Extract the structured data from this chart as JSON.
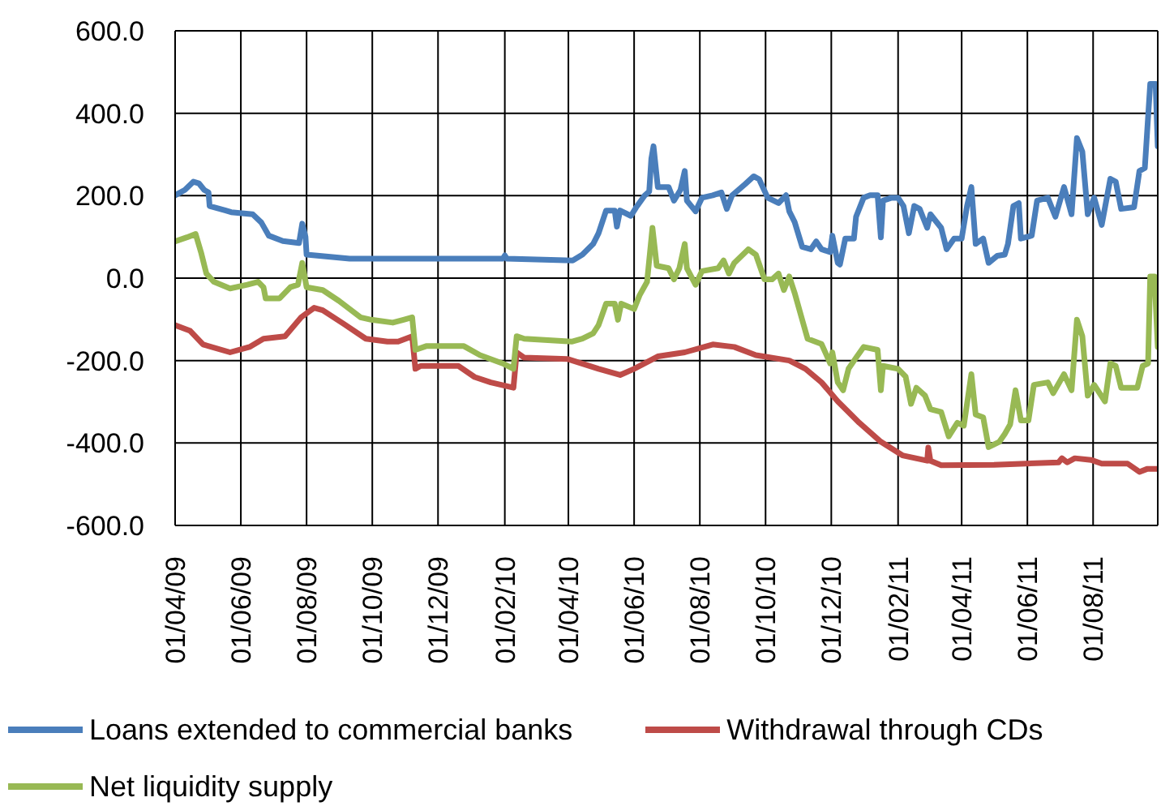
{
  "chart_data": {
    "type": "line",
    "xlim": [
      "2009-04-01",
      "2011-09-30"
    ],
    "xticks": [
      {
        "value": "2009-04-01",
        "label": "01/04/09"
      },
      {
        "value": "2009-06-01",
        "label": "01/06/09"
      },
      {
        "value": "2009-08-01",
        "label": "01/08/09"
      },
      {
        "value": "2009-10-01",
        "label": "01/10/09"
      },
      {
        "value": "2009-12-01",
        "label": "01/12/09"
      },
      {
        "value": "2010-02-01",
        "label": "01/02/10"
      },
      {
        "value": "2010-04-01",
        "label": "01/04/10"
      },
      {
        "value": "2010-06-01",
        "label": "01/06/10"
      },
      {
        "value": "2010-08-01",
        "label": "01/08/10"
      },
      {
        "value": "2010-10-01",
        "label": "01/10/10"
      },
      {
        "value": "2010-12-01",
        "label": "01/12/10"
      },
      {
        "value": "2011-02-01",
        "label": "01/02/11"
      },
      {
        "value": "2011-04-01",
        "label": "01/04/11"
      },
      {
        "value": "2011-06-01",
        "label": "01/06/11"
      },
      {
        "value": "2011-08-01",
        "label": "01/08/11"
      }
    ],
    "ylim": [
      -600,
      600
    ],
    "yticks": [
      {
        "value": -600,
        "label": "-600.0"
      },
      {
        "value": -400,
        "label": "-400.0"
      },
      {
        "value": -200,
        "label": "-200.0"
      },
      {
        "value": 0,
        "label": "0.0"
      },
      {
        "value": 200,
        "label": "200.0"
      },
      {
        "value": 400,
        "label": "400.0"
      },
      {
        "value": 600,
        "label": "600.0"
      }
    ],
    "grid": true,
    "legend": "bottom",
    "series": [
      {
        "name": "Loans extended to commercial banks",
        "color": "#4a7ebb",
        "x": [
          "2009-04-01",
          "2009-04-10",
          "2009-04-18",
          "2009-04-23",
          "2009-04-28",
          "2009-05-02",
          "2009-05-03",
          "2009-05-18",
          "2009-05-23",
          "2009-06-12",
          "2009-06-20",
          "2009-06-27",
          "2009-07-10",
          "2009-07-25",
          "2009-07-28",
          "2009-07-31",
          "2009-08-01",
          "2009-09-10",
          "2010-01-30",
          "2010-02-01",
          "2010-02-03",
          "2010-04-05",
          "2010-04-14",
          "2010-04-24",
          "2010-04-29",
          "2010-05-06",
          "2010-05-14",
          "2010-05-16",
          "2010-05-19",
          "2010-05-29",
          "2010-06-03",
          "2010-06-11",
          "2010-06-15",
          "2010-06-17",
          "2010-06-19",
          "2010-06-23",
          "2010-07-03",
          "2010-07-08",
          "2010-07-14",
          "2010-07-18",
          "2010-07-20",
          "2010-07-28",
          "2010-08-03",
          "2010-08-13",
          "2010-08-21",
          "2010-08-26",
          "2010-08-31",
          "2010-09-12",
          "2010-09-20",
          "2010-09-25",
          "2010-10-03",
          "2010-10-13",
          "2010-10-20",
          "2010-10-23",
          "2010-10-28",
          "2010-11-04",
          "2010-11-12",
          "2010-11-17",
          "2010-11-22",
          "2010-11-30",
          "2010-12-02",
          "2010-12-07",
          "2010-12-09",
          "2010-12-14",
          "2010-12-22",
          "2010-12-24",
          "2010-12-31",
          "2011-01-06",
          "2011-01-13",
          "2011-01-16",
          "2011-01-18",
          "2011-01-26",
          "2011-02-01",
          "2011-02-06",
          "2011-02-11",
          "2011-02-16",
          "2011-02-21",
          "2011-02-28",
          "2011-03-03",
          "2011-03-13",
          "2011-03-18",
          "2011-03-25",
          "2011-04-01",
          "2011-04-06",
          "2011-04-10",
          "2011-04-14",
          "2011-04-21",
          "2011-04-26",
          "2011-05-04",
          "2011-05-11",
          "2011-05-14",
          "2011-05-19",
          "2011-05-24",
          "2011-05-26",
          "2011-06-05",
          "2011-06-10",
          "2011-06-20",
          "2011-06-27",
          "2011-07-05",
          "2011-07-12",
          "2011-07-17",
          "2011-07-22",
          "2011-07-27",
          "2011-08-02",
          "2011-08-09",
          "2011-08-17",
          "2011-08-22",
          "2011-08-27",
          "2011-09-08",
          "2011-09-13",
          "2011-09-18",
          "2011-09-23",
          "2011-09-28",
          "2011-09-30"
        ],
        "values": [
          201,
          214,
          234,
          230,
          214,
          208,
          175,
          164,
          160,
          155,
          135,
          103,
          90,
          85,
          132,
          100,
          57,
          47,
          47,
          55,
          47,
          43,
          57,
          83,
          109,
          164,
          164,
          125,
          164,
          151,
          172,
          201,
          210,
          290,
          320,
          221,
          221,
          188,
          214,
          260,
          188,
          162,
          195,
          201,
          208,
          168,
          201,
          228,
          247,
          240,
          195,
          182,
          201,
          162,
          136,
          76,
          70,
          89,
          70,
          63,
          103,
          37,
          33,
          96,
          96,
          149,
          195,
          201,
          201,
          99,
          188,
          195,
          195,
          175,
          109,
          175,
          168,
          122,
          155,
          122,
          70,
          96,
          96,
          175,
          221,
          83,
          96,
          37,
          54,
          57,
          83,
          175,
          182,
          96,
          103,
          188,
          195,
          149,
          221,
          155,
          340,
          307,
          155,
          195,
          129,
          241,
          234,
          168,
          172,
          260,
          267,
          471,
          471,
          320
        ]
      },
      {
        "name": "Withdrawal through CDs",
        "color": "#be4b48",
        "x": [
          "2009-04-01",
          "2009-04-15",
          "2009-04-27",
          "2009-05-22",
          "2009-06-09",
          "2009-06-22",
          "2009-07-12",
          "2009-07-27",
          "2009-08-08",
          "2009-08-16",
          "2009-09-05",
          "2009-09-25",
          "2009-10-15",
          "2009-10-25",
          "2009-11-07",
          "2009-11-10",
          "2009-11-15",
          "2009-12-20",
          "2010-01-04",
          "2010-01-19",
          "2010-02-09",
          "2010-02-12",
          "2010-02-19",
          "2010-03-31",
          "2010-04-29",
          "2010-05-19",
          "2010-06-01",
          "2010-06-23",
          "2010-07-18",
          "2010-08-13",
          "2010-09-02",
          "2010-09-22",
          "2010-10-23",
          "2010-11-07",
          "2010-11-22",
          "2010-12-07",
          "2010-12-27",
          "2011-01-16",
          "2011-02-05",
          "2011-02-28",
          "2011-03-01",
          "2011-03-03",
          "2011-03-13",
          "2011-05-01",
          "2011-06-30",
          "2011-07-03",
          "2011-07-08",
          "2011-07-15",
          "2011-07-30",
          "2011-08-09",
          "2011-09-02",
          "2011-09-13",
          "2011-09-20",
          "2011-09-30"
        ],
        "values": [
          -114,
          -128,
          -161,
          -180,
          -167,
          -147,
          -141,
          -95,
          -72,
          -78,
          -112,
          -147,
          -154,
          -154,
          -141,
          -220,
          -213,
          -213,
          -240,
          -253,
          -266,
          -180,
          -193,
          -196,
          -220,
          -235,
          -220,
          -190,
          -180,
          -161,
          -167,
          -187,
          -200,
          -220,
          -253,
          -299,
          -351,
          -397,
          -430,
          -443,
          -411,
          -443,
          -454,
          -453,
          -447,
          -437,
          -447,
          -437,
          -441,
          -450,
          -450,
          -470,
          -463,
          -463
        ]
      },
      {
        "name": "Net liquidity supply",
        "color": "#98b954",
        "x": [
          "2009-04-01",
          "2009-04-12",
          "2009-04-20",
          "2009-04-25",
          "2009-04-30",
          "2009-05-07",
          "2009-05-22",
          "2009-06-07",
          "2009-06-17",
          "2009-06-22",
          "2009-06-24",
          "2009-07-07",
          "2009-07-17",
          "2009-07-24",
          "2009-07-28",
          "2009-08-01",
          "2009-08-16",
          "2009-08-31",
          "2009-09-20",
          "2009-09-30",
          "2009-10-20",
          "2009-10-30",
          "2009-11-07",
          "2009-11-10",
          "2009-11-20",
          "2009-12-25",
          "2010-01-09",
          "2010-01-30",
          "2010-02-09",
          "2010-02-12",
          "2010-02-19",
          "2010-04-04",
          "2010-04-14",
          "2010-04-24",
          "2010-04-29",
          "2010-05-06",
          "2010-05-14",
          "2010-05-17",
          "2010-05-20",
          "2010-06-01",
          "2010-06-06",
          "2010-06-13",
          "2010-06-18",
          "2010-06-22",
          "2010-07-03",
          "2010-07-08",
          "2010-07-13",
          "2010-07-18",
          "2010-07-20",
          "2010-07-28",
          "2010-08-03",
          "2010-08-18",
          "2010-08-23",
          "2010-08-28",
          "2010-09-02",
          "2010-09-15",
          "2010-09-22",
          "2010-09-30",
          "2010-10-07",
          "2010-10-13",
          "2010-10-18",
          "2010-10-23",
          "2010-10-28",
          "2010-11-04",
          "2010-11-09",
          "2010-11-22",
          "2010-11-30",
          "2010-12-02",
          "2010-12-07",
          "2010-12-12",
          "2010-12-17",
          "2010-12-24",
          "2010-12-31",
          "2011-01-13",
          "2011-01-16",
          "2011-01-18",
          "2011-02-01",
          "2011-02-08",
          "2011-02-13",
          "2011-02-18",
          "2011-02-26",
          "2011-03-03",
          "2011-03-13",
          "2011-03-20",
          "2011-03-28",
          "2011-04-03",
          "2011-04-10",
          "2011-04-14",
          "2011-04-21",
          "2011-04-26",
          "2011-05-06",
          "2011-05-11",
          "2011-05-16",
          "2011-05-21",
          "2011-05-26",
          "2011-06-02",
          "2011-06-07",
          "2011-06-20",
          "2011-06-25",
          "2011-07-05",
          "2011-07-12",
          "2011-07-17",
          "2011-07-22",
          "2011-07-27",
          "2011-08-02",
          "2011-08-12",
          "2011-08-17",
          "2011-08-22",
          "2011-08-27",
          "2011-09-11",
          "2011-09-16",
          "2011-09-21",
          "2011-09-23",
          "2011-09-27",
          "2011-09-30"
        ],
        "values": [
          89,
          99,
          107,
          63,
          11,
          -9,
          -25,
          -16,
          -9,
          -22,
          -49,
          -49,
          -22,
          -16,
          37,
          -22,
          -29,
          -55,
          -95,
          -101,
          -108,
          -101,
          -95,
          -174,
          -165,
          -165,
          -187,
          -207,
          -220,
          -141,
          -147,
          -154,
          -147,
          -134,
          -114,
          -62,
          -62,
          -101,
          -62,
          -75,
          -42,
          -9,
          122,
          30,
          24,
          -3,
          24,
          83,
          24,
          -16,
          17,
          24,
          43,
          11,
          37,
          70,
          57,
          -3,
          -3,
          11,
          -29,
          4,
          -36,
          -101,
          -147,
          -160,
          -207,
          -180,
          -253,
          -272,
          -220,
          -193,
          -167,
          -174,
          -272,
          -213,
          -220,
          -239,
          -305,
          -266,
          -285,
          -318,
          -325,
          -384,
          -351,
          -358,
          -233,
          -331,
          -338,
          -410,
          -397,
          -378,
          -355,
          -272,
          -345,
          -345,
          -259,
          -253,
          -279,
          -233,
          -272,
          -101,
          -141,
          -285,
          -259,
          -299,
          -207,
          -213,
          -266,
          -266,
          -213,
          -207,
          4,
          4,
          -167
        ]
      }
    ]
  }
}
